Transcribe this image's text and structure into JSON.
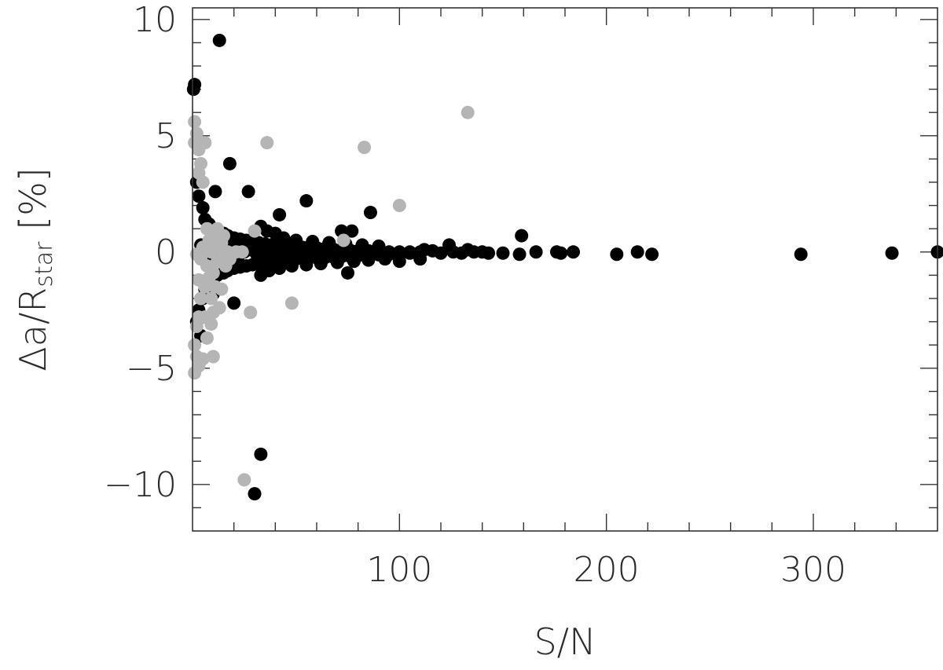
{
  "chart_data": {
    "type": "scatter",
    "title": "",
    "xlabel": "S/N",
    "ylabel_parts": {
      "prefix": "Δa/R",
      "subscript": "star",
      "suffix": " [%]"
    },
    "xlim": [
      0,
      360
    ],
    "ylim": [
      -12,
      10.5
    ],
    "x_ticks": [
      100,
      200,
      300
    ],
    "x_tick_labels": [
      "100",
      "200",
      "300"
    ],
    "y_ticks": [
      -10,
      -5,
      0,
      5,
      10
    ],
    "y_tick_labels": [
      "−10",
      "−5",
      "0",
      "5",
      "10"
    ],
    "grid": false,
    "legend": "none",
    "series_colors": {
      "black": "#000000",
      "gray": "#b5b5b5"
    },
    "black_points": [
      [
        13,
        9.1
      ],
      [
        1,
        7.2
      ],
      [
        0.5,
        7.0
      ],
      [
        18,
        3.8
      ],
      [
        11,
        2.6
      ],
      [
        27,
        2.6
      ],
      [
        42,
        1.6
      ],
      [
        55,
        2.2
      ],
      [
        86,
        1.7
      ],
      [
        77,
        0.9
      ],
      [
        72,
        0.9
      ],
      [
        2,
        3.0
      ],
      [
        3,
        2.4
      ],
      [
        5,
        1.9
      ],
      [
        6,
        1.4
      ],
      [
        8,
        1.2
      ],
      [
        10,
        1.0
      ],
      [
        12,
        0.9
      ],
      [
        15,
        0.8
      ],
      [
        17,
        0.7
      ],
      [
        20,
        0.6
      ],
      [
        23,
        0.55
      ],
      [
        26,
        0.5
      ],
      [
        29,
        0.45
      ],
      [
        32,
        0.4
      ],
      [
        35,
        0.35
      ],
      [
        38,
        0.3
      ],
      [
        41,
        0.3
      ],
      [
        44,
        0.28
      ],
      [
        47,
        0.25
      ],
      [
        50,
        0.22
      ],
      [
        53,
        0.2
      ],
      [
        56,
        0.2
      ],
      [
        60,
        0.18
      ],
      [
        64,
        0.15
      ],
      [
        68,
        0.12
      ],
      [
        72,
        0.1
      ],
      [
        76,
        0.08
      ],
      [
        80,
        0.05
      ],
      [
        85,
        0.05
      ],
      [
        90,
        0.02
      ],
      [
        95,
        0.0
      ],
      [
        100,
        0.0
      ],
      [
        105,
        0.0
      ],
      [
        110,
        0.0
      ],
      [
        2,
        -3.0
      ],
      [
        3,
        -2.5
      ],
      [
        5,
        -2.0
      ],
      [
        6,
        -1.6
      ],
      [
        8,
        -1.3
      ],
      [
        10,
        -1.2
      ],
      [
        12,
        -1.0
      ],
      [
        15,
        -0.9
      ],
      [
        17,
        -0.8
      ],
      [
        20,
        -0.7
      ],
      [
        23,
        -0.65
      ],
      [
        26,
        -0.6
      ],
      [
        29,
        -0.55
      ],
      [
        32,
        -0.5
      ],
      [
        35,
        -0.45
      ],
      [
        38,
        -0.4
      ],
      [
        41,
        -0.38
      ],
      [
        44,
        -0.35
      ],
      [
        47,
        -0.32
      ],
      [
        50,
        -0.3
      ],
      [
        53,
        -0.28
      ],
      [
        56,
        -0.26
      ],
      [
        60,
        -0.25
      ],
      [
        64,
        -0.24
      ],
      [
        68,
        -0.22
      ],
      [
        72,
        -0.2
      ],
      [
        76,
        -0.18
      ],
      [
        80,
        -0.16
      ],
      [
        85,
        -0.15
      ],
      [
        90,
        -0.12
      ],
      [
        95,
        -0.1
      ],
      [
        100,
        -0.08
      ],
      [
        105,
        -0.05
      ],
      [
        110,
        -0.05
      ],
      [
        4,
        0.3
      ],
      [
        7,
        0.2
      ],
      [
        9,
        -0.1
      ],
      [
        14,
        0.1
      ],
      [
        16,
        -0.3
      ],
      [
        19,
        0.2
      ],
      [
        22,
        -0.2
      ],
      [
        25,
        0.0
      ],
      [
        28,
        0.1
      ],
      [
        31,
        -0.1
      ],
      [
        34,
        0.0
      ],
      [
        37,
        0.05
      ],
      [
        40,
        -0.05
      ],
      [
        43,
        0.1
      ],
      [
        46,
        -0.1
      ],
      [
        49,
        0.0
      ],
      [
        52,
        0.05
      ],
      [
        55,
        -0.05
      ],
      [
        58,
        0.0
      ],
      [
        61,
        0.05
      ],
      [
        65,
        -0.05
      ],
      [
        70,
        0.0
      ],
      [
        75,
        0.0
      ],
      [
        33,
        1.1
      ],
      [
        36,
        0.9
      ],
      [
        40,
        0.8
      ],
      [
        44,
        0.6
      ],
      [
        50,
        0.5
      ],
      [
        58,
        0.45
      ],
      [
        66,
        0.4
      ],
      [
        74,
        0.35
      ],
      [
        82,
        0.3
      ],
      [
        90,
        0.25
      ],
      [
        33,
        -1.0
      ],
      [
        37,
        -0.8
      ],
      [
        42,
        -0.7
      ],
      [
        48,
        -0.6
      ],
      [
        55,
        -0.55
      ],
      [
        62,
        -0.5
      ],
      [
        70,
        -0.45
      ],
      [
        78,
        -0.4
      ],
      [
        85,
        -0.35
      ],
      [
        93,
        -0.3
      ],
      [
        20,
        -2.2
      ],
      [
        10,
        -1.8
      ],
      [
        4,
        -3.6
      ],
      [
        75,
        -0.9
      ],
      [
        100,
        -0.4
      ],
      [
        110,
        -0.3
      ],
      [
        112,
        0.1
      ],
      [
        116,
        0.05
      ],
      [
        120,
        -0.05
      ],
      [
        124,
        0.3
      ],
      [
        126,
        0.0
      ],
      [
        130,
        -0.05
      ],
      [
        133,
        0.1
      ],
      [
        136,
        0.0
      ],
      [
        140,
        0.0
      ],
      [
        143,
        -0.05
      ],
      [
        150,
        -0.05
      ],
      [
        158,
        -0.1
      ],
      [
        159,
        0.7
      ],
      [
        166,
        0.0
      ],
      [
        176,
        0.0
      ],
      [
        178,
        -0.05
      ],
      [
        184,
        0.0
      ],
      [
        205,
        -0.1
      ],
      [
        215,
        0.0
      ],
      [
        222,
        -0.1
      ],
      [
        294,
        -0.1
      ],
      [
        338,
        -0.05
      ],
      [
        360,
        0.0
      ],
      [
        33,
        -8.7
      ],
      [
        30,
        -10.4
      ]
    ],
    "gray_points": [
      [
        133,
        6.0
      ],
      [
        83,
        4.5
      ],
      [
        36,
        4.7
      ],
      [
        100,
        2.0
      ],
      [
        30,
        0.9
      ],
      [
        73,
        0.5
      ],
      [
        48,
        -2.2
      ],
      [
        28,
        -2.6
      ],
      [
        25,
        -9.8
      ],
      [
        1,
        5.6
      ],
      [
        2,
        5.1
      ],
      [
        1,
        4.7
      ],
      [
        6,
        4.7
      ],
      [
        3,
        4.4
      ],
      [
        4,
        3.8
      ],
      [
        3,
        3.4
      ],
      [
        5,
        3.0
      ],
      [
        1,
        -4.0
      ],
      [
        2,
        -4.5
      ],
      [
        3,
        -4.9
      ],
      [
        1,
        -5.2
      ],
      [
        5,
        -4.6
      ],
      [
        10,
        -4.5
      ],
      [
        7,
        -3.7
      ],
      [
        9,
        -3.1
      ],
      [
        6,
        -2.8
      ],
      [
        10,
        -2.6
      ],
      [
        13,
        -2.4
      ],
      [
        3,
        -2.8
      ],
      [
        14,
        -1.6
      ],
      [
        11,
        -1.5
      ],
      [
        6,
        -1.5
      ],
      [
        8,
        -1.1
      ],
      [
        7,
        -0.6
      ],
      [
        12,
        -0.4
      ],
      [
        15,
        -0.2
      ],
      [
        4,
        -0.3
      ],
      [
        9,
        0.0
      ],
      [
        13,
        0.2
      ],
      [
        17,
        0.0
      ],
      [
        21,
        0.0
      ],
      [
        24,
        0.0
      ],
      [
        8,
        0.5
      ],
      [
        11,
        0.8
      ],
      [
        7,
        1.0
      ],
      [
        14,
        0.4
      ],
      [
        16,
        -0.6
      ],
      [
        10,
        -0.9
      ],
      [
        5,
        0.2
      ],
      [
        2,
        -0.1
      ],
      [
        3,
        -1.2
      ],
      [
        12,
        1.0
      ],
      [
        15,
        0.7
      ],
      [
        18,
        -0.3
      ],
      [
        4,
        -2.0
      ],
      [
        9,
        -2.0
      ],
      [
        2,
        -3.2
      ]
    ]
  }
}
